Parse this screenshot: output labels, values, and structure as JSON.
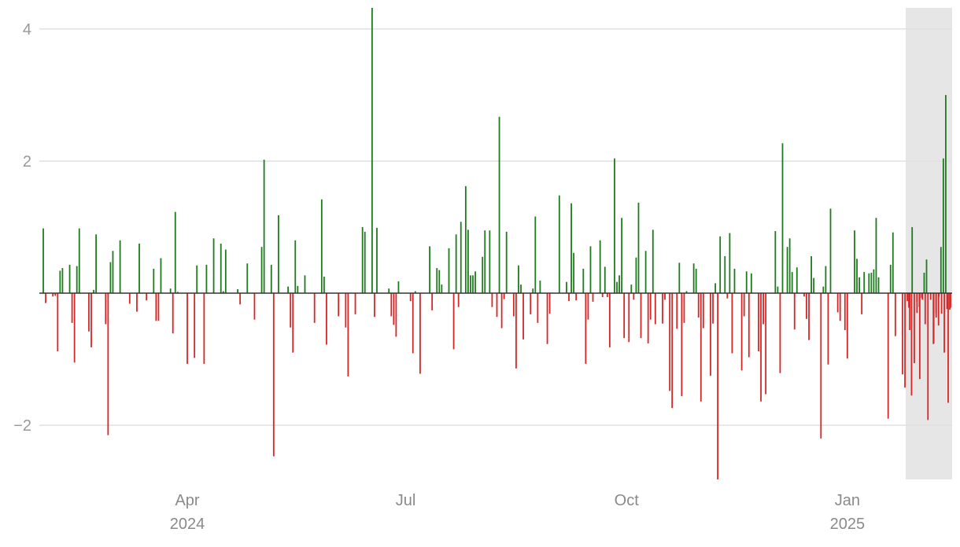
{
  "chart_data": {
    "type": "bar",
    "title": "",
    "xlabel": "",
    "ylabel": "",
    "x_range": [
      "2024-02-01",
      "2025-02-13"
    ],
    "ylim": [
      -2.82,
      4.32
    ],
    "grid": true,
    "legend": "none",
    "shaded_region": {
      "from": "2025-01-24",
      "to": "2025-02-13",
      "color": "#e6e6e6"
    },
    "colors": {
      "positive": "#1e7b1e",
      "negative": "#d62728",
      "grid": "#e0e0e0",
      "zero_line": "#333333",
      "tick_text": "#999999"
    },
    "y_ticks": [
      {
        "value": -2,
        "label": "−2"
      },
      {
        "value": 2,
        "label": "2"
      },
      {
        "value": 4,
        "label": "4"
      }
    ],
    "x_ticks": [
      {
        "date": "2024-04-01",
        "label": "Apr",
        "sublabel": "2024"
      },
      {
        "date": "2024-07-01",
        "label": "Jul",
        "sublabel": ""
      },
      {
        "date": "2024-10-01",
        "label": "Oct",
        "sublabel": ""
      },
      {
        "date": "2025-01-01",
        "label": "Jan",
        "sublabel": "2025"
      }
    ],
    "series": [
      {
        "values": [
          [
            "2024-02-01",
            0.98
          ],
          [
            "2024-02-02",
            -0.15
          ],
          [
            "2024-02-05",
            -0.05
          ],
          [
            "2024-02-06",
            -0.04
          ],
          [
            "2024-02-07",
            -0.88
          ],
          [
            "2024-02-08",
            0.34
          ],
          [
            "2024-02-09",
            0.38
          ],
          [
            "2024-02-12",
            0.43
          ],
          [
            "2024-02-13",
            -0.45
          ],
          [
            "2024-02-14",
            -1.05
          ],
          [
            "2024-02-15",
            0.41
          ],
          [
            "2024-02-16",
            0.98
          ],
          [
            "2024-02-20",
            -0.58
          ],
          [
            "2024-02-21",
            -0.82
          ],
          [
            "2024-02-22",
            0.05
          ],
          [
            "2024-02-23",
            0.89
          ],
          [
            "2024-02-27",
            -0.47
          ],
          [
            "2024-02-28",
            -2.15
          ],
          [
            "2024-02-29",
            0.47
          ],
          [
            "2024-03-01",
            0.64
          ],
          [
            "2024-03-04",
            0.8
          ],
          [
            "2024-03-08",
            -0.16
          ],
          [
            "2024-03-11",
            -0.28
          ],
          [
            "2024-03-12",
            0.75
          ],
          [
            "2024-03-15",
            -0.11
          ],
          [
            "2024-03-18",
            0.37
          ],
          [
            "2024-03-19",
            -0.42
          ],
          [
            "2024-03-20",
            -0.42
          ],
          [
            "2024-03-21",
            0.53
          ],
          [
            "2024-03-25",
            0.07
          ],
          [
            "2024-03-26",
            -0.61
          ],
          [
            "2024-03-27",
            1.23
          ],
          [
            "2024-03-28",
            0.02
          ],
          [
            "2024-04-01",
            -1.07
          ],
          [
            "2024-04-04",
            -0.98
          ],
          [
            "2024-04-05",
            0.42
          ],
          [
            "2024-04-08",
            -1.07
          ],
          [
            "2024-04-09",
            0.43
          ],
          [
            "2024-04-12",
            0.83
          ],
          [
            "2024-04-15",
            0.75
          ],
          [
            "2024-04-16",
            0.03
          ],
          [
            "2024-04-17",
            0.66
          ],
          [
            "2024-04-22",
            0.06
          ],
          [
            "2024-04-23",
            -0.17
          ],
          [
            "2024-04-26",
            0.45
          ],
          [
            "2024-04-29",
            -0.4
          ],
          [
            "2024-05-02",
            0.7
          ],
          [
            "2024-05-03",
            2.02
          ],
          [
            "2024-05-06",
            0.43
          ],
          [
            "2024-05-07",
            -2.47
          ],
          [
            "2024-05-09",
            1.18
          ],
          [
            "2024-05-13",
            0.1
          ],
          [
            "2024-05-14",
            -0.52
          ],
          [
            "2024-05-15",
            -0.9
          ],
          [
            "2024-05-16",
            0.8
          ],
          [
            "2024-05-17",
            0.11
          ],
          [
            "2024-05-20",
            0.27
          ],
          [
            "2024-05-24",
            -0.45
          ],
          [
            "2024-05-27",
            1.42
          ],
          [
            "2024-05-28",
            0.25
          ],
          [
            "2024-05-29",
            -0.78
          ],
          [
            "2024-06-03",
            -0.35
          ],
          [
            "2024-06-06",
            -0.52
          ],
          [
            "2024-06-07",
            -1.26
          ],
          [
            "2024-06-10",
            -0.32
          ],
          [
            "2024-06-13",
            1.0
          ],
          [
            "2024-06-14",
            0.93
          ],
          [
            "2024-06-17",
            4.32
          ],
          [
            "2024-06-18",
            -0.36
          ],
          [
            "2024-06-19",
            0.99
          ],
          [
            "2024-06-24",
            0.07
          ],
          [
            "2024-06-25",
            -0.35
          ],
          [
            "2024-06-26",
            -0.48
          ],
          [
            "2024-06-27",
            -0.66
          ],
          [
            "2024-06-28",
            0.18
          ],
          [
            "2024-07-03",
            -0.12
          ],
          [
            "2024-07-04",
            -0.91
          ],
          [
            "2024-07-05",
            0.03
          ],
          [
            "2024-07-07",
            -1.22
          ],
          [
            "2024-07-11",
            0.71
          ],
          [
            "2024-07-12",
            -0.26
          ],
          [
            "2024-07-14",
            0.38
          ],
          [
            "2024-07-15",
            0.35
          ],
          [
            "2024-07-16",
            0.13
          ],
          [
            "2024-07-19",
            0.68
          ],
          [
            "2024-07-21",
            -0.85
          ],
          [
            "2024-07-22",
            0.89
          ],
          [
            "2024-07-23",
            -0.21
          ],
          [
            "2024-07-24",
            1.08
          ],
          [
            "2024-07-26",
            1.62
          ],
          [
            "2024-07-27",
            0.96
          ],
          [
            "2024-07-28",
            0.27
          ],
          [
            "2024-07-29",
            0.27
          ],
          [
            "2024-07-30",
            0.33
          ],
          [
            "2024-08-02",
            0.55
          ],
          [
            "2024-08-03",
            0.95
          ],
          [
            "2024-08-05",
            0.95
          ],
          [
            "2024-08-06",
            -0.21
          ],
          [
            "2024-08-08",
            -0.36
          ],
          [
            "2024-08-09",
            2.67
          ],
          [
            "2024-08-10",
            -0.53
          ],
          [
            "2024-08-11",
            -0.09
          ],
          [
            "2024-08-12",
            0.93
          ],
          [
            "2024-08-15",
            -0.35
          ],
          [
            "2024-08-16",
            -1.14
          ],
          [
            "2024-08-17",
            0.42
          ],
          [
            "2024-08-18",
            0.13
          ],
          [
            "2024-08-19",
            -0.7
          ],
          [
            "2024-08-22",
            -0.32
          ],
          [
            "2024-08-23",
            0.07
          ],
          [
            "2024-08-24",
            1.16
          ],
          [
            "2024-08-25",
            -0.45
          ],
          [
            "2024-08-26",
            0.19
          ],
          [
            "2024-08-29",
            -0.77
          ],
          [
            "2024-08-30",
            -0.31
          ],
          [
            "2024-09-03",
            1.48
          ],
          [
            "2024-09-06",
            0.17
          ],
          [
            "2024-09-07",
            -0.12
          ],
          [
            "2024-09-08",
            1.36
          ],
          [
            "2024-09-09",
            0.61
          ],
          [
            "2024-09-10",
            -0.11
          ],
          [
            "2024-09-13",
            0.37
          ],
          [
            "2024-09-14",
            -1.07
          ],
          [
            "2024-09-15",
            -0.4
          ],
          [
            "2024-09-16",
            0.71
          ],
          [
            "2024-09-17",
            -0.13
          ],
          [
            "2024-09-20",
            0.8
          ],
          [
            "2024-09-21",
            -0.06
          ],
          [
            "2024-09-22",
            0.4
          ],
          [
            "2024-09-23",
            -0.06
          ],
          [
            "2024-09-24",
            -0.82
          ],
          [
            "2024-09-26",
            2.04
          ],
          [
            "2024-09-27",
            0.17
          ],
          [
            "2024-09-28",
            0.27
          ],
          [
            "2024-09-29",
            1.14
          ],
          [
            "2024-09-30",
            -0.68
          ],
          [
            "2024-10-02",
            -0.74
          ],
          [
            "2024-10-03",
            0.13
          ],
          [
            "2024-10-04",
            -0.1
          ],
          [
            "2024-10-05",
            0.54
          ],
          [
            "2024-10-06",
            1.37
          ],
          [
            "2024-10-07",
            -0.68
          ],
          [
            "2024-10-09",
            0.64
          ],
          [
            "2024-10-10",
            -0.76
          ],
          [
            "2024-10-11",
            -0.4
          ],
          [
            "2024-10-12",
            0.96
          ],
          [
            "2024-10-13",
            -0.47
          ],
          [
            "2024-10-16",
            -0.46
          ],
          [
            "2024-10-17",
            -0.1
          ],
          [
            "2024-10-19",
            -1.48
          ],
          [
            "2024-10-20",
            -1.74
          ],
          [
            "2024-10-22",
            -0.54
          ],
          [
            "2024-10-23",
            0.46
          ],
          [
            "2024-10-24",
            -1.56
          ],
          [
            "2024-10-25",
            -0.45
          ],
          [
            "2024-10-26",
            0.03
          ],
          [
            "2024-10-29",
            0.45
          ],
          [
            "2024-10-30",
            0.37
          ],
          [
            "2024-10-31",
            -0.37
          ],
          [
            "2024-11-01",
            -1.64
          ],
          [
            "2024-11-02",
            -0.53
          ],
          [
            "2024-11-05",
            -1.25
          ],
          [
            "2024-11-06",
            -0.46
          ],
          [
            "2024-11-07",
            0.15
          ],
          [
            "2024-11-08",
            -2.82
          ],
          [
            "2024-11-09",
            0.86
          ],
          [
            "2024-11-11",
            0.56
          ],
          [
            "2024-11-12",
            -0.08
          ],
          [
            "2024-11-13",
            0.91
          ],
          [
            "2024-11-14",
            -0.91
          ],
          [
            "2024-11-15",
            0.37
          ],
          [
            "2024-11-18",
            -1.17
          ],
          [
            "2024-11-19",
            -0.35
          ],
          [
            "2024-11-20",
            0.33
          ],
          [
            "2024-11-21",
            -0.97
          ],
          [
            "2024-11-22",
            0.3
          ],
          [
            "2024-11-25",
            -0.88
          ],
          [
            "2024-11-26",
            -1.64
          ],
          [
            "2024-11-27",
            -0.47
          ],
          [
            "2024-11-28",
            -1.53
          ],
          [
            "2024-12-02",
            0.94
          ],
          [
            "2024-12-03",
            0.1
          ],
          [
            "2024-12-04",
            -1.21
          ],
          [
            "2024-12-05",
            2.27
          ],
          [
            "2024-12-07",
            0.7
          ],
          [
            "2024-12-08",
            0.83
          ],
          [
            "2024-12-09",
            0.32
          ],
          [
            "2024-12-10",
            -0.55
          ],
          [
            "2024-12-11",
            0.39
          ],
          [
            "2024-12-14",
            -0.05
          ],
          [
            "2024-12-15",
            -0.39
          ],
          [
            "2024-12-16",
            -0.71
          ],
          [
            "2024-12-17",
            0.56
          ],
          [
            "2024-12-18",
            0.23
          ],
          [
            "2024-12-21",
            -2.2
          ],
          [
            "2024-12-22",
            0.1
          ],
          [
            "2024-12-23",
            0.41
          ],
          [
            "2024-12-24",
            -1.08
          ],
          [
            "2024-12-25",
            1.28
          ],
          [
            "2024-12-28",
            -0.29
          ],
          [
            "2024-12-29",
            -0.42
          ],
          [
            "2024-12-31",
            -0.56
          ],
          [
            "2025-01-01",
            -0.99
          ],
          [
            "2025-01-04",
            0.95
          ],
          [
            "2025-01-05",
            0.52
          ],
          [
            "2025-01-06",
            0.24
          ],
          [
            "2025-01-07",
            -0.32
          ],
          [
            "2025-01-08",
            0.32
          ],
          [
            "2025-01-10",
            0.3
          ],
          [
            "2025-01-11",
            0.31
          ],
          [
            "2025-01-12",
            0.36
          ],
          [
            "2025-01-13",
            1.14
          ],
          [
            "2025-01-14",
            0.24
          ],
          [
            "2025-01-18",
            -1.9
          ],
          [
            "2025-01-19",
            0.43
          ],
          [
            "2025-01-20",
            0.92
          ],
          [
            "2025-01-21",
            -0.65
          ],
          [
            "2025-01-24",
            -1.23
          ],
          [
            "2025-01-25",
            -1.43
          ],
          [
            "2025-01-26",
            -0.12
          ],
          [
            "2025-01-27",
            -0.56
          ],
          [
            "2025-01-28",
            1.0
          ],
          [
            "2025-01-30",
            -0.13
          ],
          [
            "2025-01-31",
            -0.21
          ],
          [
            "2025-02-01",
            -0.07
          ],
          [
            "2025-02-02",
            0.31
          ],
          [
            "2025-02-03",
            0.51
          ],
          [
            "2025-02-06",
            -0.76
          ],
          [
            "2025-02-07",
            -0.37
          ],
          [
            "2025-02-08",
            -0.49
          ],
          [
            "2025-02-09",
            0.7
          ],
          [
            "2025-02-10",
            2.04
          ],
          [
            "2025-02-11",
            3.0
          ],
          [
            "2025-02-12",
            -1.66
          ],
          [
            "2025-02-13",
            -0.22
          ]
        ]
      }
    ],
    "shaded_values": [
      -0.22,
      -1.55,
      -1.06,
      -0.3,
      -1.3,
      -0.1,
      -0.47,
      -1.92,
      -0.1,
      -0.77,
      -0.3,
      -0.05,
      -0.31,
      -0.9,
      -0.24,
      -0.25
    ]
  }
}
